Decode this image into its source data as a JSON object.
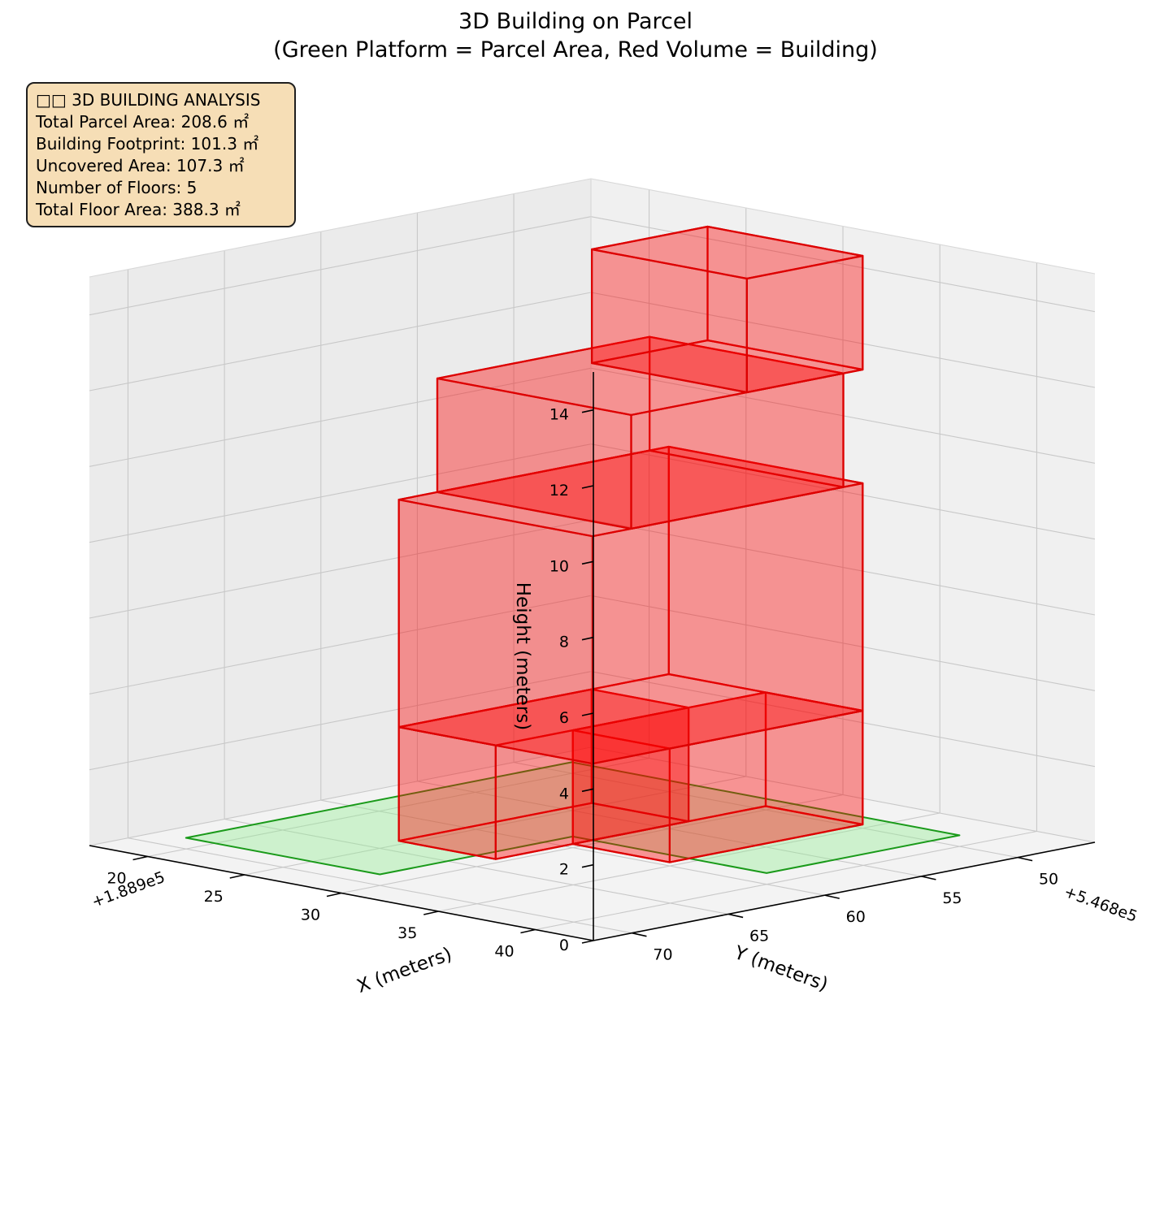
{
  "title_line1": "3D Building on Parcel",
  "title_line2": "(Green Platform = Parcel Area, Red Volume = Building)",
  "info_box": {
    "heading": "□□ 3D BUILDING ANALYSIS",
    "lines": [
      "Total Parcel Area: 208.6 ㎡",
      "Building Footprint: 101.3 ㎡",
      "Uncovered Area: 107.3 ㎡",
      "Number of Floors: 5",
      "Total Floor Area: 388.3 ㎡"
    ]
  },
  "chart_data": {
    "type": "3d-polygons",
    "projection": "3d perspective, elevation 30°, azimuth 45°",
    "x_axis": {
      "label": "X (meters)",
      "offset_text": "+1.889e5",
      "ticks": [
        20,
        25,
        30,
        35,
        40
      ],
      "range": [
        17,
        43
      ]
    },
    "y_axis": {
      "label": "Y (meters)",
      "offset_text": "+5.468e5",
      "ticks": [
        50,
        55,
        60,
        65,
        70
      ],
      "range": [
        46,
        72
      ]
    },
    "z_axis": {
      "label": "Height (meters)",
      "ticks": [
        0,
        2,
        4,
        6,
        8,
        10,
        12,
        14
      ],
      "range": [
        0,
        15
      ]
    },
    "parcel": {
      "name": "Parcel Area",
      "color": "#90ee90",
      "edge": "#1a9a1a",
      "footprint": [
        [
          18.5,
          48.5
        ],
        [
          38.5,
          48.5
        ],
        [
          38.5,
          58.5
        ],
        [
          28.5,
          58.5
        ],
        [
          28.5,
          68.5
        ],
        [
          18.5,
          68.5
        ]
      ]
    },
    "building": {
      "name": "Building",
      "color": "#ff0000",
      "edge": "#dd0000",
      "floors": 5,
      "floor_height": 3,
      "blocks": [
        {
          "footprint": [
            [
              29.5,
              49.5
            ],
            [
              34.5,
              49.5
            ],
            [
              34.5,
              59.5
            ],
            [
              29.5,
              59.5
            ]
          ],
          "z": [
            0,
            3
          ]
        },
        {
          "footprint": [
            [
              24.5,
              53.5
            ],
            [
              29.5,
              53.5
            ],
            [
              29.5,
              63.5
            ],
            [
              24.5,
              63.5
            ]
          ],
          "z": [
            0,
            3
          ]
        },
        {
          "footprint": [
            [
              24.5,
              49.5
            ],
            [
              34.5,
              49.5
            ],
            [
              34.5,
              63.5
            ],
            [
              24.5,
              63.5
            ]
          ],
          "z": [
            3,
            9
          ]
        },
        {
          "footprint": [
            [
              24.5,
              50.5
            ],
            [
              34.5,
              50.5
            ],
            [
              34.5,
              61.5
            ],
            [
              24.5,
              61.5
            ]
          ],
          "z": [
            9,
            12
          ]
        },
        {
          "footprint": [
            [
              26.5,
              49.5
            ],
            [
              34.5,
              49.5
            ],
            [
              34.5,
              55.5
            ],
            [
              26.5,
              55.5
            ]
          ],
          "z": [
            12,
            15
          ]
        }
      ]
    },
    "grid": true
  }
}
